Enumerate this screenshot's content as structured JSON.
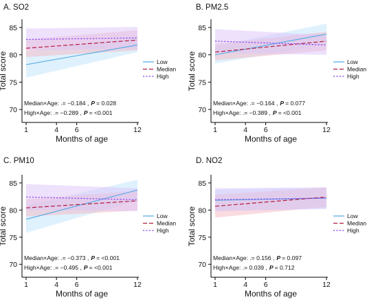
{
  "legend": {
    "entries": [
      {
        "label": "Low",
        "color": "#5aaee6",
        "dash": "solid"
      },
      {
        "label": "Median",
        "color": "#b01c3c",
        "dash": "dashed"
      },
      {
        "label": "High",
        "color": "#8a3ff0",
        "dash": "dotted"
      }
    ]
  },
  "colors": {
    "low": "#5aaee6",
    "median": "#b01c3c",
    "high": "#8a3ff0",
    "band_low": "#bfe3fb",
    "band_median": "#f4b7c1",
    "band_high": "#dcc4fa"
  },
  "chart_data": [
    {
      "type": "line",
      "panel": "A",
      "title": "A. SO2",
      "xlabel": "Months of age",
      "ylabel": "Total score",
      "xlim": [
        1,
        12
      ],
      "ylim": [
        68,
        86
      ],
      "xticks": [
        1,
        4,
        6,
        12
      ],
      "yticks": [
        70,
        75,
        80,
        85
      ],
      "grid": false,
      "legend_position": "right",
      "x": [
        1,
        12
      ],
      "series": [
        {
          "name": "Low",
          "values": [
            78.2,
            81.8
          ],
          "ci_lower": [
            75.8,
            80.5
          ],
          "ci_upper": [
            80.6,
            83.4
          ]
        },
        {
          "name": "Median",
          "values": [
            81.2,
            82.7
          ],
          "ci_lower": [
            79.6,
            80.8
          ],
          "ci_upper": [
            82.8,
            84.5
          ]
        },
        {
          "name": "High",
          "values": [
            82.8,
            83.1
          ],
          "ci_lower": [
            80.8,
            81.1
          ],
          "ci_upper": [
            84.8,
            85.1
          ]
        }
      ],
      "annotations": [
        {
          "label": "Median×Age:  .= −0.184  ,",
          "p_label": "P",
          "p_value": "= 0.028"
        },
        {
          "label": "High×Age:  .= −0.289  ,",
          "p_label": "P",
          "p_value": "= <0.001"
        }
      ]
    },
    {
      "type": "line",
      "panel": "B",
      "title": "B. PM2.5",
      "xlabel": "Months of age",
      "ylabel": "Total score",
      "xlim": [
        1,
        12
      ],
      "ylim": [
        68,
        86
      ],
      "xticks": [
        1,
        4,
        6,
        12
      ],
      "yticks": [
        70,
        75,
        80,
        85
      ],
      "grid": false,
      "legend_position": "right",
      "x": [
        1,
        12
      ],
      "series": [
        {
          "name": "Low",
          "values": [
            80.0,
            83.8
          ],
          "ci_lower": [
            78.4,
            81.9
          ],
          "ci_upper": [
            81.6,
            85.7
          ]
        },
        {
          "name": "Median",
          "values": [
            80.5,
            82.5
          ],
          "ci_lower": [
            79.0,
            80.8
          ],
          "ci_upper": [
            82.0,
            84.2
          ]
        },
        {
          "name": "High",
          "values": [
            82.5,
            81.8
          ],
          "ci_lower": [
            80.3,
            80.0
          ],
          "ci_upper": [
            84.7,
            83.6
          ]
        }
      ],
      "annotations": [
        {
          "label": "Median×Age:  .= −0.164  ,",
          "p_label": "P",
          "p_value": "= 0.077"
        },
        {
          "label": "High×Age:  .= −0.389  ,",
          "p_label": "P",
          "p_value": "= <0.001"
        }
      ]
    },
    {
      "type": "line",
      "panel": "C",
      "title": "C. PM10",
      "xlabel": "Months of age",
      "ylabel": "Total score",
      "xlim": [
        1,
        12
      ],
      "ylim": [
        68,
        86
      ],
      "xticks": [
        1,
        4,
        6,
        12
      ],
      "yticks": [
        70,
        75,
        80,
        85
      ],
      "grid": false,
      "legend_position": "right",
      "x": [
        1,
        12
      ],
      "series": [
        {
          "name": "Low",
          "values": [
            78.3,
            83.7
          ],
          "ci_lower": [
            75.8,
            81.8
          ],
          "ci_upper": [
            80.8,
            85.6
          ]
        },
        {
          "name": "Median",
          "values": [
            80.4,
            81.7
          ],
          "ci_lower": [
            78.8,
            79.9
          ],
          "ci_upper": [
            82.0,
            83.5
          ]
        },
        {
          "name": "High",
          "values": [
            82.4,
            81.9
          ],
          "ci_lower": [
            80.0,
            79.8
          ],
          "ci_upper": [
            84.8,
            84.0
          ]
        }
      ],
      "annotations": [
        {
          "label": "Median×Age:  .= −0.373  ,",
          "p_label": "P",
          "p_value": "= <0.001"
        },
        {
          "label": "High×Age:  .= −0.495  ,",
          "p_label": "P",
          "p_value": "= <0.001"
        }
      ]
    },
    {
      "type": "line",
      "panel": "D",
      "title": "D. NO2",
      "xlabel": "Months of age",
      "ylabel": "Total score",
      "xlim": [
        1,
        12
      ],
      "ylim": [
        68,
        86
      ],
      "xticks": [
        1,
        4,
        6,
        12
      ],
      "yticks": [
        70,
        75,
        80,
        85
      ],
      "grid": false,
      "legend_position": "right",
      "x": [
        1,
        12
      ],
      "series": [
        {
          "name": "Low",
          "values": [
            81.8,
            82.2
          ],
          "ci_lower": [
            79.8,
            80.3
          ],
          "ci_upper": [
            83.8,
            84.1
          ]
        },
        {
          "name": "Median",
          "values": [
            80.7,
            82.4
          ],
          "ci_lower": [
            78.6,
            80.6
          ],
          "ci_upper": [
            82.8,
            84.2
          ]
        },
        {
          "name": "High",
          "values": [
            81.9,
            82.2
          ],
          "ci_lower": [
            79.8,
            80.2
          ],
          "ci_upper": [
            84.0,
            84.2
          ]
        }
      ],
      "annotations": [
        {
          "label": "Median×Age:  .= 0.156  ,",
          "p_label": "P",
          "p_value": "= 0.097"
        },
        {
          "label": "High×Age:  .= 0.039  ,",
          "p_label": "P",
          "p_value": "= 0.712"
        }
      ]
    }
  ]
}
